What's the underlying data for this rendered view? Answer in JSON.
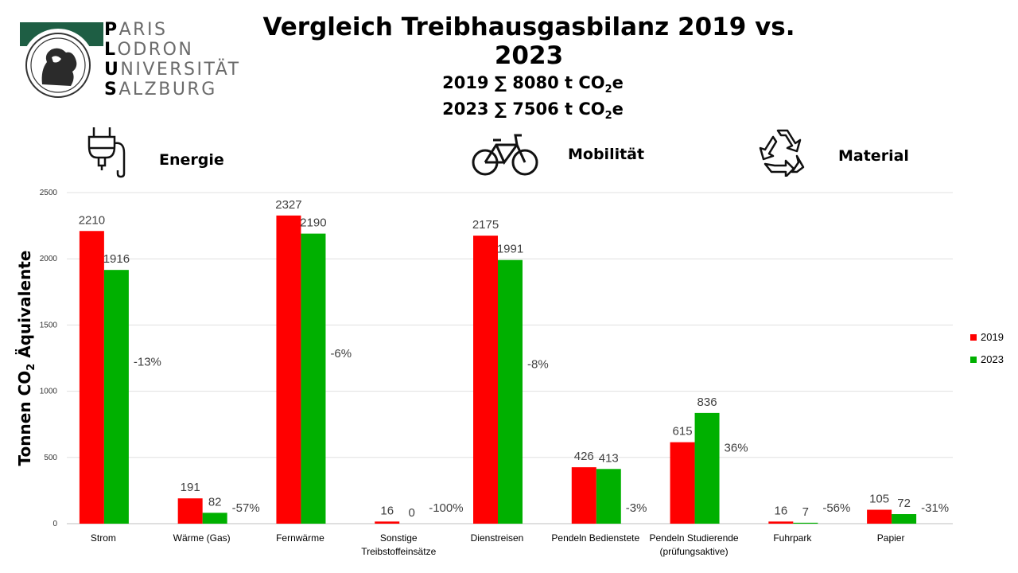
{
  "logo": {
    "lines": [
      {
        "initial": "P",
        "rest": "ARIS"
      },
      {
        "initial": "L",
        "rest": "ODRON"
      },
      {
        "initial": "U",
        "rest": "NIVERSITÄT"
      },
      {
        "initial": "S",
        "rest": "ALZBURG"
      }
    ]
  },
  "title": "Vergleich Treibhausgasbilanz 2019 vs. 2023",
  "totals": {
    "line_2019_prefix": "2019 ∑ 8080 t CO",
    "line_2023_prefix": "2023 ∑ 7506 t CO",
    "subscript": "2",
    "suffix": "e"
  },
  "category_headers": {
    "energie": "Energie",
    "mobilitaet": "Mobilität",
    "material": "Material"
  },
  "icons": [
    "plug-icon",
    "bicycle-icon",
    "recycle-icon"
  ],
  "ylabel": {
    "prefix": "Tonnen  CO",
    "subscript": "2",
    "suffix": " Äquivalente"
  },
  "legend": [
    {
      "label": "2019",
      "color": "#ff0000"
    },
    {
      "label": "2023",
      "color": "#00b000"
    }
  ],
  "chart_data": {
    "type": "bar",
    "categories": [
      [
        "Strom"
      ],
      [
        "Wärme (Gas)"
      ],
      [
        "Fernwärme"
      ],
      [
        "Sonstige",
        "Treibstoffeinsätze"
      ],
      [
        "Dienstreisen"
      ],
      [
        "Pendeln  Bedienstete"
      ],
      [
        "Pendeln  Studierende",
        "(prüfungsaktive)"
      ],
      [
        "Fuhrpark"
      ],
      [
        "Papier"
      ]
    ],
    "series": [
      {
        "name": "2019",
        "color": "#ff0000",
        "values": [
          2210,
          191,
          2327,
          16,
          2175,
          426,
          615,
          16,
          105
        ]
      },
      {
        "name": "2023",
        "color": "#00b000",
        "values": [
          1916,
          82,
          2190,
          0,
          1991,
          413,
          836,
          7,
          72
        ]
      }
    ],
    "change_labels": [
      "-13%",
      "-57%",
      "-6%",
      "-100%",
      "-8%",
      "-3%",
      "36%",
      "-56%",
      "-31%"
    ],
    "yticks": [
      0,
      500,
      1000,
      1500,
      2000,
      2500
    ],
    "ylim": [
      0,
      2500
    ],
    "grid": true,
    "legend_position": "right"
  }
}
